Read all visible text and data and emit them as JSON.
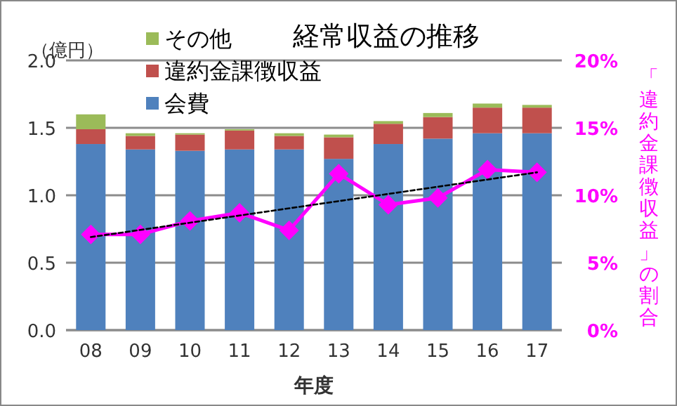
{
  "chart_data": {
    "type": "bar",
    "title": "経常収益の推移",
    "xlabel": "年度",
    "ylabel": "（億円）",
    "y2label": "「違約金課徴収益」の割合",
    "categories": [
      "08",
      "09",
      "10",
      "11",
      "12",
      "13",
      "14",
      "15",
      "16",
      "17"
    ],
    "stacked": true,
    "series": [
      {
        "name": "会費",
        "color": "#4f81bd",
        "values": [
          1.38,
          1.34,
          1.33,
          1.34,
          1.34,
          1.27,
          1.38,
          1.42,
          1.46,
          1.46
        ]
      },
      {
        "name": "違約金課徴収益",
        "color": "#c0504d",
        "values": [
          0.11,
          0.1,
          0.12,
          0.14,
          0.1,
          0.16,
          0.15,
          0.16,
          0.19,
          0.19
        ]
      },
      {
        "name": "その他",
        "color": "#9bbb59",
        "values": [
          0.11,
          0.02,
          0.01,
          0.01,
          0.02,
          0.02,
          0.02,
          0.03,
          0.03,
          0.02
        ]
      },
      {
        "type": "line",
        "axis": "y2",
        "color": "#ff00ff",
        "marker": "diamond",
        "values": [
          7.1,
          7.1,
          8.1,
          8.7,
          7.4,
          11.6,
          9.3,
          9.8,
          11.9,
          11.7
        ]
      },
      {
        "type": "line",
        "axis": "y2",
        "color": "#000000",
        "line_style": "dashed",
        "x": [
          "08",
          "17"
        ],
        "values": [
          6.9,
          11.7
        ]
      }
    ],
    "ylim": [
      0,
      2.0
    ],
    "yticks": [
      {
        "value": 0,
        "label": "0.0"
      },
      0.5,
      {
        "value": 1,
        "label": "1.0"
      },
      1.5,
      {
        "value": 2,
        "label": "2.0"
      }
    ],
    "y2lim": [
      0,
      20
    ],
    "y2ticks": [
      {
        "value": 0,
        "label": "0%"
      },
      {
        "value": 5,
        "label": "5%"
      },
      {
        "value": 10,
        "label": "10%"
      },
      {
        "value": 15,
        "label": "15%"
      },
      {
        "value": 20,
        "label": "20%"
      }
    ],
    "grid": "y",
    "legend": "top left"
  }
}
